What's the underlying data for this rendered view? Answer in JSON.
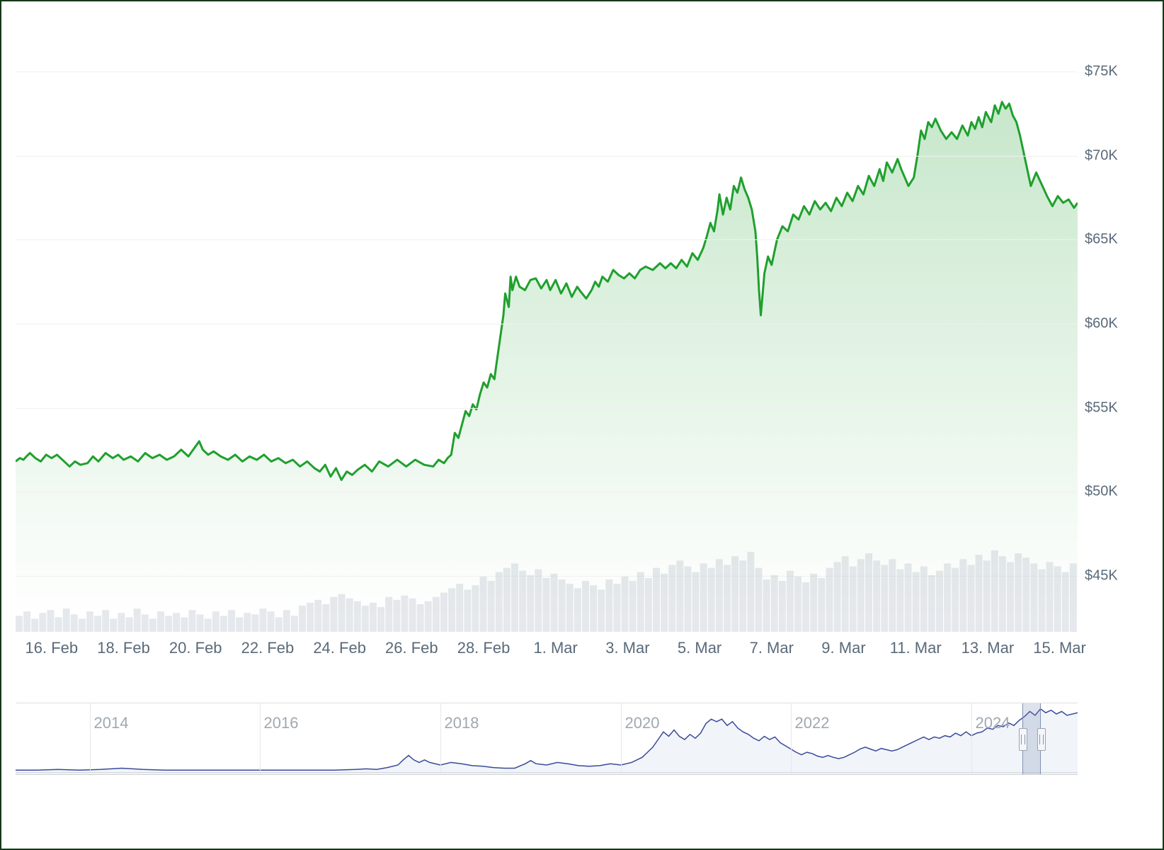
{
  "chart": {
    "type": "line-area",
    "line_color": "#1fa02e",
    "line_width": 3,
    "area_fill_top": "rgba(31,160,46,0.25)",
    "area_fill_bottom": "rgba(31,160,46,0.0)",
    "background_color": "#ffffff",
    "grid_color": "#f0f0f0",
    "border_color": "#16381b",
    "axis_label_color": "#5a6a7a",
    "axis_font_size": 20,
    "y_min": 42500,
    "y_max": 77500,
    "y_ticks": [
      45000,
      50000,
      55000,
      60000,
      65000,
      70000,
      75000
    ],
    "y_tick_labels": [
      "$45K",
      "$50K",
      "$55K",
      "$60K",
      "$65K",
      "$70K",
      "$75K"
    ],
    "x_ticks": [
      1,
      3,
      5,
      7,
      9,
      11,
      13,
      15,
      17,
      19,
      21,
      23,
      25,
      27,
      29
    ],
    "x_tick_labels": [
      "16. Feb",
      "18. Feb",
      "20. Feb",
      "22. Feb",
      "24. Feb",
      "26. Feb",
      "28. Feb",
      "1. Mar",
      "3. Mar",
      "5. Mar",
      "7. Mar",
      "9. Mar",
      "11. Mar",
      "13. Mar",
      "15. Mar"
    ],
    "series": [
      [
        0.0,
        51800
      ],
      [
        0.12,
        52000
      ],
      [
        0.22,
        51900
      ],
      [
        0.3,
        52100
      ],
      [
        0.4,
        52300
      ],
      [
        0.55,
        52000
      ],
      [
        0.7,
        51800
      ],
      [
        0.85,
        52200
      ],
      [
        1.0,
        52000
      ],
      [
        1.15,
        52200
      ],
      [
        1.3,
        51900
      ],
      [
        1.5,
        51500
      ],
      [
        1.65,
        51800
      ],
      [
        1.8,
        51600
      ],
      [
        2.0,
        51700
      ],
      [
        2.15,
        52100
      ],
      [
        2.3,
        51800
      ],
      [
        2.5,
        52300
      ],
      [
        2.7,
        52000
      ],
      [
        2.85,
        52200
      ],
      [
        3.0,
        51900
      ],
      [
        3.2,
        52100
      ],
      [
        3.4,
        51800
      ],
      [
        3.6,
        52300
      ],
      [
        3.8,
        52000
      ],
      [
        4.0,
        52200
      ],
      [
        4.2,
        51900
      ],
      [
        4.4,
        52100
      ],
      [
        4.6,
        52500
      ],
      [
        4.8,
        52100
      ],
      [
        5.0,
        52700
      ],
      [
        5.1,
        53000
      ],
      [
        5.2,
        52500
      ],
      [
        5.35,
        52200
      ],
      [
        5.5,
        52400
      ],
      [
        5.7,
        52100
      ],
      [
        5.9,
        51900
      ],
      [
        6.1,
        52200
      ],
      [
        6.3,
        51800
      ],
      [
        6.5,
        52100
      ],
      [
        6.7,
        51900
      ],
      [
        6.9,
        52200
      ],
      [
        7.1,
        51800
      ],
      [
        7.3,
        52000
      ],
      [
        7.5,
        51700
      ],
      [
        7.7,
        51900
      ],
      [
        7.9,
        51500
      ],
      [
        8.1,
        51800
      ],
      [
        8.3,
        51400
      ],
      [
        8.45,
        51200
      ],
      [
        8.6,
        51600
      ],
      [
        8.75,
        50900
      ],
      [
        8.9,
        51400
      ],
      [
        9.05,
        50700
      ],
      [
        9.2,
        51200
      ],
      [
        9.35,
        51000
      ],
      [
        9.5,
        51300
      ],
      [
        9.7,
        51600
      ],
      [
        9.9,
        51200
      ],
      [
        10.1,
        51800
      ],
      [
        10.35,
        51500
      ],
      [
        10.6,
        51900
      ],
      [
        10.85,
        51500
      ],
      [
        11.1,
        51900
      ],
      [
        11.35,
        51600
      ],
      [
        11.6,
        51500
      ],
      [
        11.75,
        51900
      ],
      [
        11.9,
        51700
      ],
      [
        12.0,
        52000
      ],
      [
        12.1,
        52200
      ],
      [
        12.2,
        53500
      ],
      [
        12.3,
        53200
      ],
      [
        12.4,
        54000
      ],
      [
        12.5,
        54800
      ],
      [
        12.6,
        54500
      ],
      [
        12.7,
        55200
      ],
      [
        12.8,
        54900
      ],
      [
        12.9,
        55800
      ],
      [
        13.0,
        56500
      ],
      [
        13.1,
        56200
      ],
      [
        13.2,
        57000
      ],
      [
        13.3,
        56700
      ],
      [
        13.35,
        57500
      ],
      [
        13.45,
        59000
      ],
      [
        13.55,
        60500
      ],
      [
        13.6,
        61800
      ],
      [
        13.7,
        61000
      ],
      [
        13.75,
        62800
      ],
      [
        13.8,
        62000
      ],
      [
        13.9,
        62800
      ],
      [
        14.0,
        62200
      ],
      [
        14.15,
        62000
      ],
      [
        14.3,
        62600
      ],
      [
        14.45,
        62700
      ],
      [
        14.6,
        62100
      ],
      [
        14.75,
        62600
      ],
      [
        14.85,
        62000
      ],
      [
        15.0,
        62600
      ],
      [
        15.15,
        61800
      ],
      [
        15.3,
        62400
      ],
      [
        15.45,
        61600
      ],
      [
        15.6,
        62200
      ],
      [
        15.7,
        61900
      ],
      [
        15.85,
        61500
      ],
      [
        16.0,
        62000
      ],
      [
        16.1,
        62500
      ],
      [
        16.2,
        62200
      ],
      [
        16.3,
        62800
      ],
      [
        16.45,
        62500
      ],
      [
        16.6,
        63200
      ],
      [
        16.75,
        62900
      ],
      [
        16.9,
        62700
      ],
      [
        17.05,
        63000
      ],
      [
        17.2,
        62700
      ],
      [
        17.35,
        63200
      ],
      [
        17.5,
        63400
      ],
      [
        17.7,
        63200
      ],
      [
        17.9,
        63600
      ],
      [
        18.05,
        63300
      ],
      [
        18.2,
        63600
      ],
      [
        18.35,
        63300
      ],
      [
        18.5,
        63800
      ],
      [
        18.65,
        63400
      ],
      [
        18.8,
        64200
      ],
      [
        18.95,
        63800
      ],
      [
        19.1,
        64500
      ],
      [
        19.2,
        65200
      ],
      [
        19.3,
        66000
      ],
      [
        19.4,
        65500
      ],
      [
        19.5,
        66800
      ],
      [
        19.55,
        67700
      ],
      [
        19.65,
        66500
      ],
      [
        19.75,
        67500
      ],
      [
        19.85,
        66800
      ],
      [
        19.95,
        68200
      ],
      [
        20.05,
        67800
      ],
      [
        20.15,
        68700
      ],
      [
        20.25,
        68000
      ],
      [
        20.35,
        67500
      ],
      [
        20.45,
        66800
      ],
      [
        20.55,
        65500
      ],
      [
        20.6,
        64000
      ],
      [
        20.65,
        62000
      ],
      [
        20.7,
        60500
      ],
      [
        20.8,
        63000
      ],
      [
        20.9,
        64000
      ],
      [
        21.0,
        63500
      ],
      [
        21.15,
        65000
      ],
      [
        21.3,
        65800
      ],
      [
        21.45,
        65500
      ],
      [
        21.6,
        66500
      ],
      [
        21.75,
        66200
      ],
      [
        21.9,
        67000
      ],
      [
        22.05,
        66500
      ],
      [
        22.2,
        67300
      ],
      [
        22.35,
        66800
      ],
      [
        22.5,
        67200
      ],
      [
        22.65,
        66700
      ],
      [
        22.8,
        67500
      ],
      [
        22.95,
        67000
      ],
      [
        23.1,
        67800
      ],
      [
        23.25,
        67300
      ],
      [
        23.4,
        68200
      ],
      [
        23.55,
        67700
      ],
      [
        23.7,
        68800
      ],
      [
        23.85,
        68200
      ],
      [
        24.0,
        69200
      ],
      [
        24.1,
        68500
      ],
      [
        24.2,
        69600
      ],
      [
        24.35,
        69000
      ],
      [
        24.5,
        69800
      ],
      [
        24.6,
        69200
      ],
      [
        24.7,
        68700
      ],
      [
        24.8,
        68200
      ],
      [
        24.95,
        68700
      ],
      [
        25.05,
        70000
      ],
      [
        25.15,
        71500
      ],
      [
        25.25,
        71000
      ],
      [
        25.35,
        72000
      ],
      [
        25.45,
        71700
      ],
      [
        25.55,
        72200
      ],
      [
        25.7,
        71500
      ],
      [
        25.85,
        71000
      ],
      [
        26.0,
        71400
      ],
      [
        26.15,
        71000
      ],
      [
        26.3,
        71800
      ],
      [
        26.45,
        71200
      ],
      [
        26.55,
        72000
      ],
      [
        26.65,
        71600
      ],
      [
        26.75,
        72300
      ],
      [
        26.85,
        71700
      ],
      [
        26.95,
        72600
      ],
      [
        27.1,
        72000
      ],
      [
        27.2,
        73000
      ],
      [
        27.3,
        72500
      ],
      [
        27.4,
        73200
      ],
      [
        27.5,
        72800
      ],
      [
        27.6,
        73100
      ],
      [
        27.7,
        72400
      ],
      [
        27.8,
        72000
      ],
      [
        27.9,
        71200
      ],
      [
        28.0,
        70200
      ],
      [
        28.1,
        69200
      ],
      [
        28.2,
        68200
      ],
      [
        28.35,
        69000
      ],
      [
        28.5,
        68300
      ],
      [
        28.65,
        67600
      ],
      [
        28.8,
        67000
      ],
      [
        28.95,
        67600
      ],
      [
        29.1,
        67200
      ],
      [
        29.25,
        67400
      ],
      [
        29.4,
        66900
      ],
      [
        29.5,
        67200
      ]
    ],
    "x_domain_min": 0,
    "x_domain_max": 29.5
  },
  "volume": {
    "fill_color": "rgba(180,190,200,0.35)",
    "bar_height_max": 115,
    "data": [
      22,
      28,
      18,
      26,
      30,
      20,
      32,
      24,
      18,
      28,
      22,
      30,
      18,
      26,
      20,
      32,
      24,
      18,
      28,
      22,
      26,
      20,
      30,
      24,
      18,
      28,
      22,
      30,
      20,
      26,
      24,
      32,
      28,
      20,
      30,
      22,
      36,
      40,
      44,
      38,
      48,
      52,
      46,
      42,
      36,
      40,
      34,
      48,
      44,
      50,
      46,
      38,
      42,
      48,
      54,
      60,
      66,
      58,
      64,
      76,
      70,
      82,
      88,
      94,
      84,
      78,
      86,
      74,
      80,
      72,
      66,
      60,
      70,
      64,
      58,
      72,
      66,
      76,
      70,
      82,
      74,
      88,
      80,
      92,
      98,
      90,
      82,
      94,
      88,
      100,
      92,
      104,
      98,
      110,
      88,
      72,
      78,
      70,
      84,
      76,
      68,
      80,
      74,
      88,
      96,
      104,
      90,
      100,
      108,
      98,
      92,
      100,
      86,
      94,
      82,
      90,
      78,
      84,
      94,
      88,
      100,
      92,
      106,
      98,
      112,
      104,
      96,
      108,
      102,
      94,
      86,
      96,
      90,
      82,
      94
    ]
  },
  "navigator": {
    "line_color": "#3a4a9a",
    "nav_tick_labels": [
      "2014",
      "2016",
      "2018",
      "2020",
      "2022",
      "2024"
    ],
    "nav_tick_positions": [
      0.07,
      0.23,
      0.4,
      0.57,
      0.73,
      0.9
    ],
    "selection_start": 0.948,
    "selection_end": 0.965,
    "series": [
      [
        0.0,
        2
      ],
      [
        0.02,
        2
      ],
      [
        0.04,
        3
      ],
      [
        0.06,
        2
      ],
      [
        0.08,
        3
      ],
      [
        0.1,
        5
      ],
      [
        0.12,
        3
      ],
      [
        0.14,
        2
      ],
      [
        0.16,
        2
      ],
      [
        0.18,
        2
      ],
      [
        0.2,
        2
      ],
      [
        0.22,
        2
      ],
      [
        0.24,
        2
      ],
      [
        0.26,
        2
      ],
      [
        0.28,
        2
      ],
      [
        0.3,
        2
      ],
      [
        0.32,
        3
      ],
      [
        0.33,
        4
      ],
      [
        0.34,
        3
      ],
      [
        0.35,
        6
      ],
      [
        0.36,
        10
      ],
      [
        0.365,
        18
      ],
      [
        0.37,
        25
      ],
      [
        0.375,
        18
      ],
      [
        0.38,
        14
      ],
      [
        0.385,
        18
      ],
      [
        0.39,
        14
      ],
      [
        0.4,
        10
      ],
      [
        0.41,
        14
      ],
      [
        0.42,
        12
      ],
      [
        0.43,
        9
      ],
      [
        0.44,
        8
      ],
      [
        0.45,
        6
      ],
      [
        0.46,
        5
      ],
      [
        0.47,
        5
      ],
      [
        0.48,
        12
      ],
      [
        0.485,
        17
      ],
      [
        0.49,
        12
      ],
      [
        0.5,
        10
      ],
      [
        0.51,
        14
      ],
      [
        0.52,
        12
      ],
      [
        0.53,
        9
      ],
      [
        0.54,
        8
      ],
      [
        0.55,
        9
      ],
      [
        0.56,
        12
      ],
      [
        0.57,
        10
      ],
      [
        0.58,
        14
      ],
      [
        0.59,
        22
      ],
      [
        0.595,
        30
      ],
      [
        0.6,
        38
      ],
      [
        0.605,
        50
      ],
      [
        0.61,
        62
      ],
      [
        0.615,
        55
      ],
      [
        0.62,
        65
      ],
      [
        0.625,
        55
      ],
      [
        0.63,
        50
      ],
      [
        0.635,
        58
      ],
      [
        0.64,
        52
      ],
      [
        0.645,
        60
      ],
      [
        0.65,
        75
      ],
      [
        0.655,
        82
      ],
      [
        0.66,
        78
      ],
      [
        0.665,
        82
      ],
      [
        0.67,
        72
      ],
      [
        0.675,
        78
      ],
      [
        0.68,
        68
      ],
      [
        0.685,
        62
      ],
      [
        0.69,
        58
      ],
      [
        0.695,
        52
      ],
      [
        0.7,
        48
      ],
      [
        0.705,
        55
      ],
      [
        0.71,
        50
      ],
      [
        0.715,
        54
      ],
      [
        0.72,
        45
      ],
      [
        0.725,
        40
      ],
      [
        0.73,
        35
      ],
      [
        0.735,
        30
      ],
      [
        0.74,
        26
      ],
      [
        0.745,
        30
      ],
      [
        0.75,
        28
      ],
      [
        0.755,
        24
      ],
      [
        0.76,
        22
      ],
      [
        0.765,
        25
      ],
      [
        0.77,
        22
      ],
      [
        0.775,
        20
      ],
      [
        0.78,
        22
      ],
      [
        0.785,
        26
      ],
      [
        0.79,
        30
      ],
      [
        0.795,
        35
      ],
      [
        0.8,
        38
      ],
      [
        0.805,
        35
      ],
      [
        0.81,
        32
      ],
      [
        0.815,
        36
      ],
      [
        0.82,
        34
      ],
      [
        0.825,
        32
      ],
      [
        0.83,
        34
      ],
      [
        0.835,
        38
      ],
      [
        0.84,
        42
      ],
      [
        0.845,
        46
      ],
      [
        0.85,
        50
      ],
      [
        0.855,
        54
      ],
      [
        0.86,
        50
      ],
      [
        0.865,
        54
      ],
      [
        0.87,
        52
      ],
      [
        0.875,
        56
      ],
      [
        0.88,
        54
      ],
      [
        0.885,
        60
      ],
      [
        0.89,
        56
      ],
      [
        0.895,
        62
      ],
      [
        0.9,
        56
      ],
      [
        0.905,
        60
      ],
      [
        0.91,
        62
      ],
      [
        0.915,
        68
      ],
      [
        0.92,
        66
      ],
      [
        0.925,
        72
      ],
      [
        0.93,
        70
      ],
      [
        0.935,
        76
      ],
      [
        0.94,
        72
      ],
      [
        0.945,
        80
      ],
      [
        0.95,
        86
      ],
      [
        0.955,
        94
      ],
      [
        0.96,
        88
      ],
      [
        0.965,
        98
      ],
      [
        0.97,
        92
      ],
      [
        0.975,
        96
      ],
      [
        0.98,
        90
      ],
      [
        0.985,
        94
      ],
      [
        0.99,
        88
      ],
      [
        1.0,
        92
      ]
    ]
  }
}
